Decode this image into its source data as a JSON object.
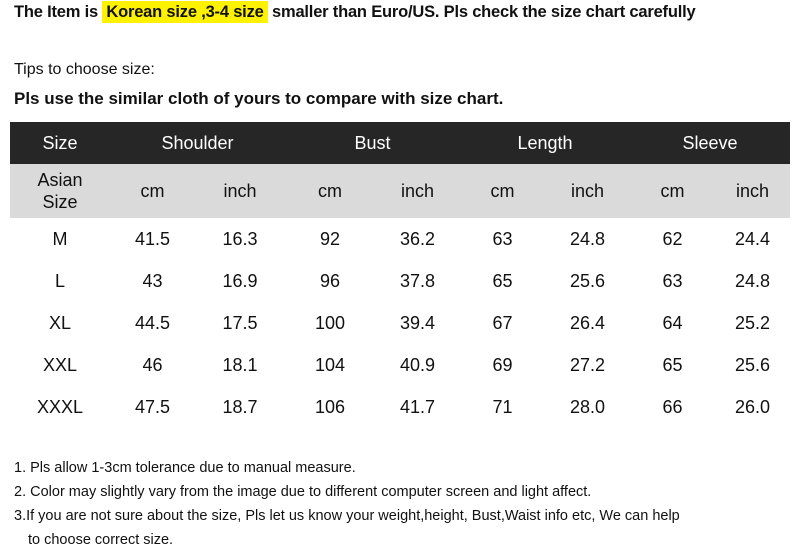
{
  "notice": {
    "before": "The Item is",
    "highlight": "Korean size ,3-4 size",
    "after": "smaller than Euro/US. Pls check the size chart carefully",
    "highlight_color": "#fff200"
  },
  "tips": {
    "heading": "Tips to choose size:",
    "bold": "Pls use the similar cloth of yours to compare with size chart."
  },
  "table": {
    "headers": [
      "Size",
      "Shoulder",
      "Bust",
      "Length",
      "Sleeve"
    ],
    "subheaders": [
      "Asian Size",
      "cm",
      "inch",
      "cm",
      "inch",
      "cm",
      "inch",
      "cm",
      "inch"
    ],
    "rows": [
      [
        "M",
        "41.5",
        "16.3",
        "92",
        "36.2",
        "63",
        "24.8",
        "62",
        "24.4"
      ],
      [
        "L",
        "43",
        "16.9",
        "96",
        "37.8",
        "65",
        "25.6",
        "63",
        "24.8"
      ],
      [
        "XL",
        "44.5",
        "17.5",
        "100",
        "39.4",
        "67",
        "26.4",
        "64",
        "25.2"
      ],
      [
        "XXL",
        "46",
        "18.1",
        "104",
        "40.9",
        "69",
        "27.2",
        "65",
        "25.6"
      ],
      [
        "XXXL",
        "47.5",
        "18.7",
        "106",
        "41.7",
        "71",
        "28.0",
        "66",
        "26.0"
      ]
    ]
  },
  "notes": [
    "1. Pls allow 1-3cm tolerance due to manual measure.",
    "2. Color may slightly vary from the image due to different computer screen and light affect.",
    "3.If you are not sure about the size, Pls let us know your weight,height, Bust,Waist info etc, We can help",
    "to choose correct size."
  ]
}
